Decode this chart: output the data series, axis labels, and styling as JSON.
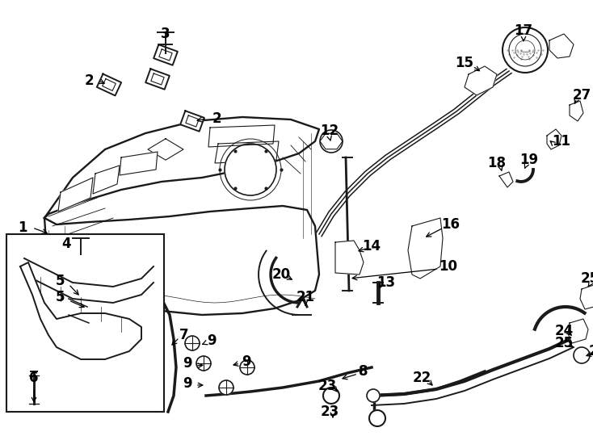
{
  "bg_color": "#ffffff",
  "line_color": "#1a1a1a",
  "lw_main": 1.4,
  "lw_thin": 0.8,
  "lw_thick": 2.5,
  "fs_label": 12,
  "figw": 7.34,
  "figh": 5.4,
  "dpi": 100
}
